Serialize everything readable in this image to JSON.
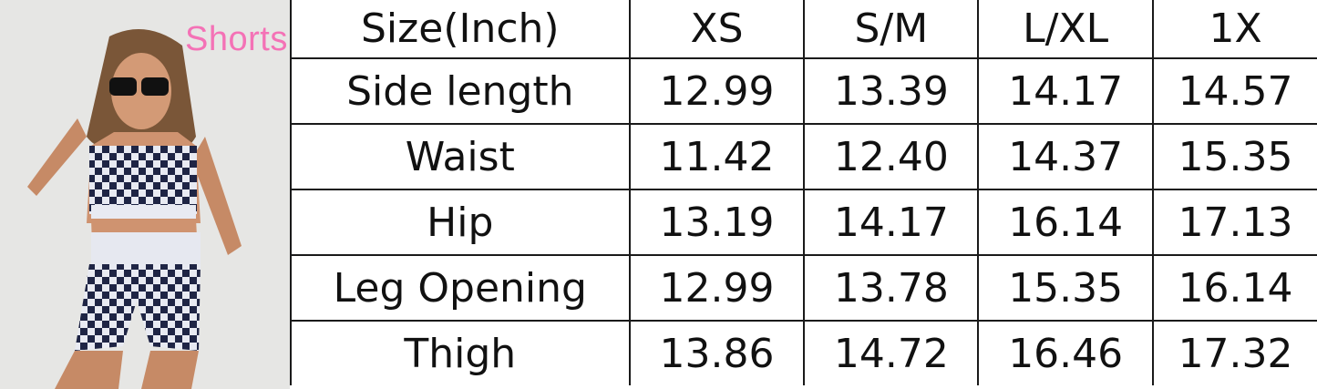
{
  "title_label": "Shorts",
  "table": {
    "headers": [
      "Size(Inch)",
      "XS",
      "S/M",
      "L/XL",
      "1X"
    ],
    "rows": [
      [
        "Side length",
        "12.99",
        "13.39",
        "14.17",
        "14.57"
      ],
      [
        "Waist",
        "11.42",
        "12.40",
        "14.37",
        "15.35"
      ],
      [
        "Hip",
        "13.19",
        "14.17",
        "16.14",
        "17.13"
      ],
      [
        "Leg Opening",
        "12.99",
        "13.78",
        "15.35",
        "16.14"
      ],
      [
        "Thigh",
        "13.86",
        "14.72",
        "16.46",
        "17.32"
      ]
    ]
  },
  "colors": {
    "label": "#f472b6",
    "grid": "#1a1a1a"
  }
}
